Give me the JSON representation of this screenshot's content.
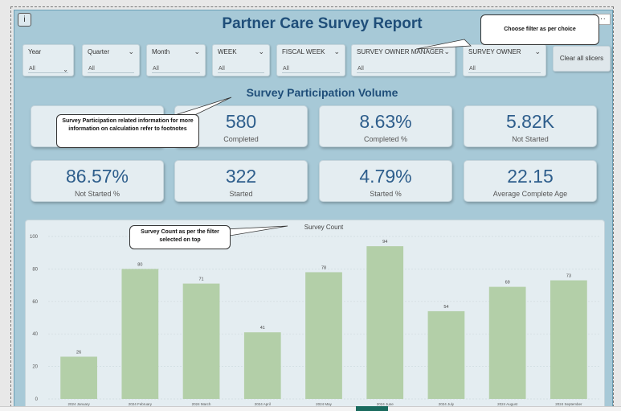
{
  "report": {
    "title": "Partner Care Survey Report",
    "subtitle": "Survey Participation Volume",
    "info_label": "i",
    "more_label": "...",
    "clear_button": "Clear all slicers"
  },
  "slicers": [
    {
      "label": "Year",
      "value": "All"
    },
    {
      "label": "Quarter",
      "value": "All"
    },
    {
      "label": "Month",
      "value": "All"
    },
    {
      "label": "WEEK",
      "value": "All"
    },
    {
      "label": "FISCAL WEEK",
      "value": "All"
    },
    {
      "label": "SURVEY OWNER MANAGER",
      "value": "All"
    },
    {
      "label": "SURVEY OWNER",
      "value": "All"
    }
  ],
  "kpis": [
    {
      "value": "",
      "label": ""
    },
    {
      "value": "580",
      "label": "Completed"
    },
    {
      "value": "8.63%",
      "label": "Completed %"
    },
    {
      "value": "5.82K",
      "label": "Not Started"
    },
    {
      "value": "86.57%",
      "label": "Not Started %"
    },
    {
      "value": "322",
      "label": "Started"
    },
    {
      "value": "4.79%",
      "label": "Started %"
    },
    {
      "value": "22.15",
      "label": "Average Complete Age"
    }
  ],
  "callouts": {
    "filter": "Choose filter as per choice",
    "participation": "Survey Participation related information for more information on calculation refer to footnotes",
    "survey_count": "Survey Count as per the filter selected on top"
  },
  "colors": {
    "background": "#a7c9d7",
    "title": "#1f4e79",
    "kpi_value": "#2e5e8c",
    "bar": "#b3cfa8"
  },
  "chart_data": {
    "type": "bar",
    "title": "Survey Count",
    "categories": [
      "2024 January",
      "2024 February",
      "2024 March",
      "2024 April",
      "2024 May",
      "2024 June",
      "2024 July",
      "2024 August",
      "2024 September"
    ],
    "values": [
      26,
      80,
      71,
      41,
      78,
      94,
      54,
      69,
      73
    ],
    "ylim": [
      0,
      100
    ],
    "yticks": [
      0,
      20,
      40,
      60,
      80,
      100
    ],
    "grid": true,
    "xlabel": "",
    "ylabel": ""
  }
}
